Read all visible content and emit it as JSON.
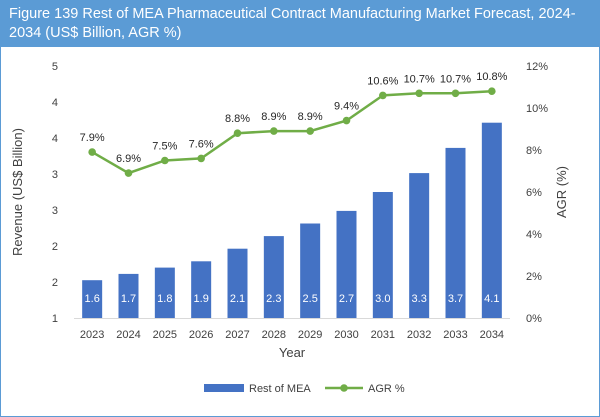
{
  "title": "Figure 139 Rest of MEA Pharmaceutical Contract Manufacturing Market Forecast, 2024-2034 (US$ Billion, AGR %)",
  "colors": {
    "header": "#5b9bd5",
    "bar": "#4472c4",
    "line": "#70ad47",
    "border": "#5b9bd5"
  },
  "chart_data": {
    "type": "bar",
    "categories": [
      "2023",
      "2024",
      "2025",
      "2026",
      "2027",
      "2028",
      "2029",
      "2030",
      "2031",
      "2032",
      "2033",
      "2034"
    ],
    "series": [
      {
        "name": "Rest of MEA",
        "type": "bar",
        "axis": "left",
        "values": [
          1.6,
          1.7,
          1.8,
          1.9,
          2.1,
          2.3,
          2.5,
          2.7,
          3.0,
          3.3,
          3.7,
          4.1
        ],
        "labels": [
          "1.6",
          "1.7",
          "1.8",
          "1.9",
          "2.1",
          "2.3",
          "2.5",
          "2.7",
          "3.0",
          "3.3",
          "3.7",
          "4.1"
        ]
      },
      {
        "name": "AGR %",
        "type": "line",
        "axis": "right",
        "values": [
          7.9,
          6.9,
          7.5,
          7.6,
          8.8,
          8.9,
          8.9,
          9.4,
          10.6,
          10.7,
          10.7,
          10.8
        ],
        "labels": [
          "7.9%",
          "6.9%",
          "7.5%",
          "7.6%",
          "8.8%",
          "8.9%",
          "8.9%",
          "9.4%",
          "10.6%",
          "10.7%",
          "10.7%",
          "10.8%"
        ]
      }
    ],
    "xlabel": "Year",
    "ylabel": "Revenue (US$ Billion)",
    "y2label": "AGR (%)",
    "ylim": [
      1,
      5
    ],
    "y2lim": [
      0,
      12
    ],
    "yticks": [
      "1",
      "2",
      "2",
      "3",
      "3",
      "4",
      "4",
      "5"
    ],
    "y2ticks": [
      "0%",
      "2%",
      "4%",
      "6%",
      "8%",
      "10%",
      "12%"
    ],
    "grid": false,
    "legend": "bottom-center"
  }
}
